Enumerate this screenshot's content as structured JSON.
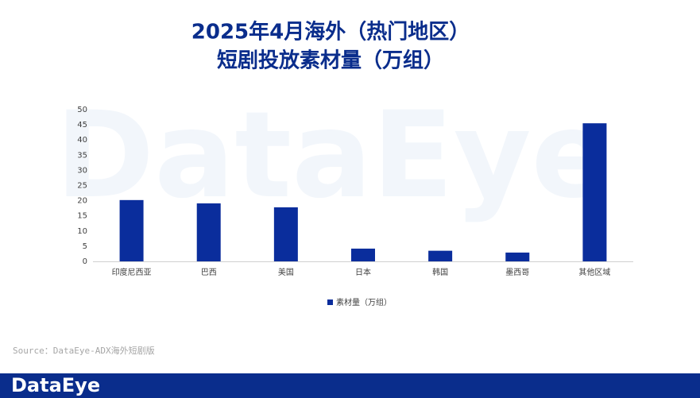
{
  "chart_data": {
    "type": "bar",
    "title": "2025年4月海外（热门地区）",
    "subtitle": "短剧投放素材量（万组）",
    "categories": [
      "印度尼西亚",
      "巴西",
      "美国",
      "日本",
      "韩国",
      "墨西哥",
      "其他区域"
    ],
    "series": [
      {
        "name": "素材量（万组）",
        "color": "#0a2d9c",
        "values": [
          20.2,
          19.1,
          17.8,
          4.2,
          3.5,
          2.9,
          45.5
        ]
      }
    ],
    "ylim": [
      0,
      50
    ],
    "yticks": [
      0,
      5,
      10,
      15,
      20,
      25,
      30,
      35,
      40,
      45,
      50
    ],
    "grid": false,
    "legend": "bottom"
  },
  "source": "Source：DataEye-ADX海外短剧版",
  "watermark": "DataEye",
  "footer_logo": "DataEye"
}
